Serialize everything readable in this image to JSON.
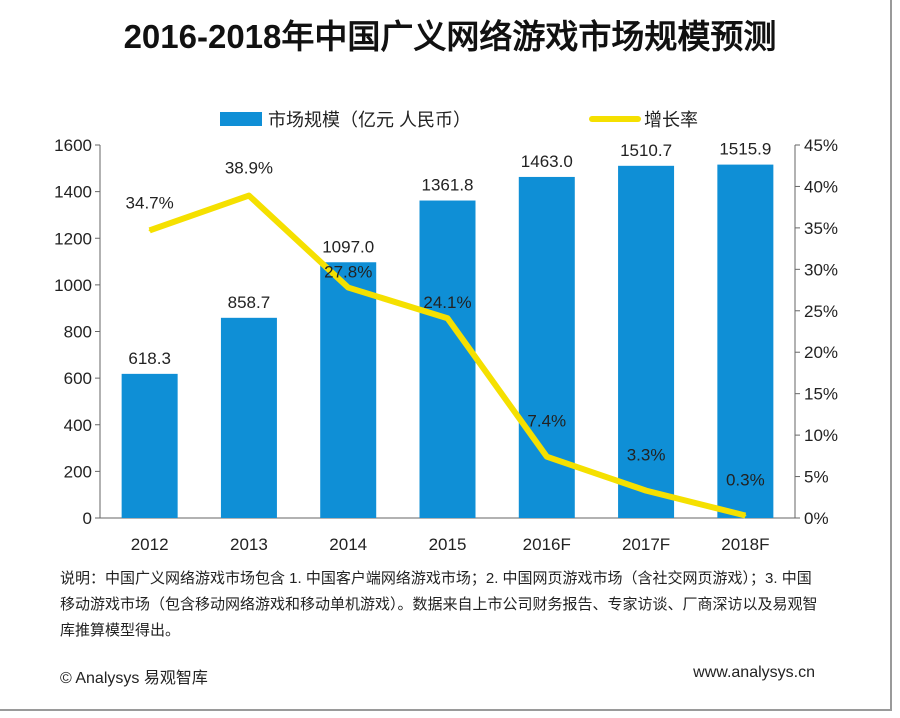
{
  "title": "2016-2018年中国广义网络游戏市场规模预测",
  "chart_data": {
    "type": "bar+line",
    "title": "2016-2018年中国广义网络游戏市场规模预测",
    "categories": [
      "2012",
      "2013",
      "2014",
      "2015",
      "2016F",
      "2017F",
      "2018F"
    ],
    "series": [
      {
        "name": "市场规模（亿元 人民币）",
        "type": "bar",
        "axis": "left",
        "color": "#0f8fd6",
        "values": [
          618.3,
          858.7,
          1097.0,
          1361.8,
          1463.0,
          1510.7,
          1515.9
        ],
        "labels": [
          "618.3",
          "858.7",
          "1097.0",
          "1361.8",
          "1463.0",
          "1510.7",
          "1515.9"
        ]
      },
      {
        "name": "增长率",
        "type": "line",
        "axis": "right",
        "color": "#f5e000",
        "values": [
          34.7,
          38.9,
          27.8,
          24.1,
          7.4,
          3.3,
          0.3
        ],
        "labels": [
          "34.7%",
          "38.9%",
          "27.8%",
          "24.1%",
          "7.4%",
          "3.3%",
          "0.3%"
        ]
      }
    ],
    "y_left": {
      "range": [
        0,
        1600
      ],
      "ticks": [
        "0",
        "200",
        "400",
        "600",
        "800",
        "1000",
        "1200",
        "1400",
        "1600"
      ]
    },
    "y_right": {
      "range": [
        0,
        45
      ],
      "ticks": [
        "0%",
        "5%",
        "10%",
        "15%",
        "20%",
        "25%",
        "30%",
        "35%",
        "40%",
        "45%"
      ]
    },
    "grid": false,
    "legend": "top"
  },
  "note": "说明：中国广义网络游戏市场包含 1. 中国客户端网络游戏市场；2. 中国网页游戏市场（含社交网页游戏）；3. 中国移动游戏市场（包含移动网络游戏和移动单机游戏）。数据来自上市公司财务报告、专家访谈、厂商深访以及易观智库推算模型得出。",
  "copyright": "© Analysys 易观智库",
  "url": "www.analysys.cn"
}
